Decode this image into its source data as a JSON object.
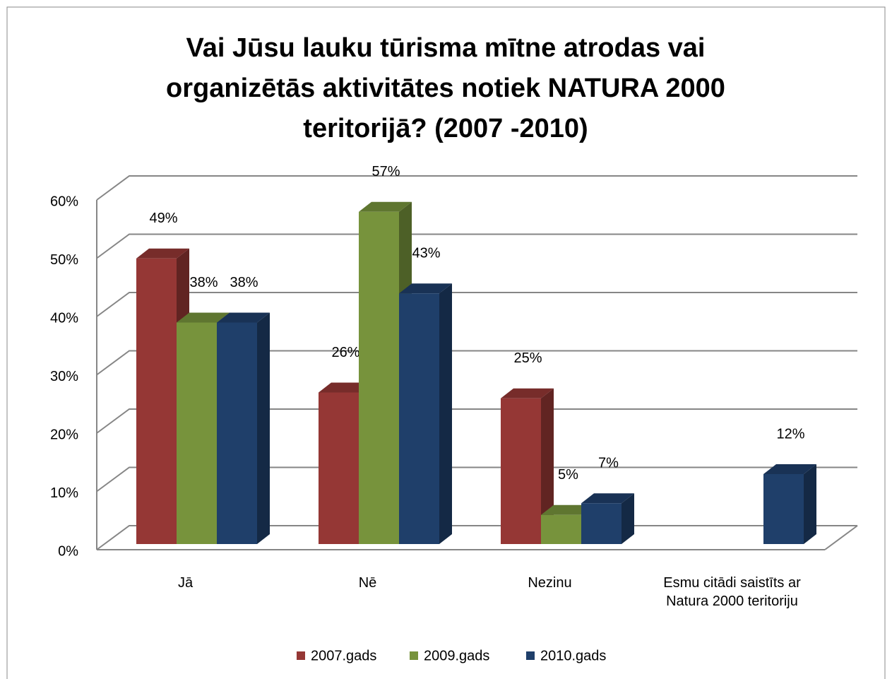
{
  "chart_data": {
    "type": "bar3d",
    "title": "Vai Jūsu lauku tūrisma mītne atrodas vai organizētās aktivitātes notiek NATURA 2000 teritorijā? (2007 -2010)",
    "categories": [
      "Jā",
      "Nē",
      "Nezinu",
      "Esmu citādi saistīts ar Natura 2000 teritoriju"
    ],
    "series": [
      {
        "name": "2007.gads",
        "color": "#953735",
        "values": [
          49,
          26,
          25,
          null
        ],
        "value_labels": [
          "49%",
          "26%",
          "25%",
          null
        ]
      },
      {
        "name": "2009.gads",
        "color": "#77933c",
        "values": [
          38,
          57,
          5,
          null
        ],
        "value_labels": [
          "38%",
          "57%",
          "5%",
          null
        ]
      },
      {
        "name": "2010.gads",
        "color": "#1f3f6a",
        "values": [
          38,
          43,
          7,
          12
        ],
        "value_labels": [
          "38%",
          "43%",
          "7%",
          "12%"
        ]
      }
    ],
    "ylim": [
      0,
      60
    ],
    "yticks": [
      {
        "value": 0,
        "label": "0%"
      },
      {
        "value": 10,
        "label": "10%"
      },
      {
        "value": 20,
        "label": "20%"
      },
      {
        "value": 30,
        "label": "30%"
      },
      {
        "value": 40,
        "label": "40%"
      },
      {
        "value": 50,
        "label": "50%"
      },
      {
        "value": 60,
        "label": "60%"
      }
    ],
    "grid": true,
    "legend": "bottom"
  }
}
